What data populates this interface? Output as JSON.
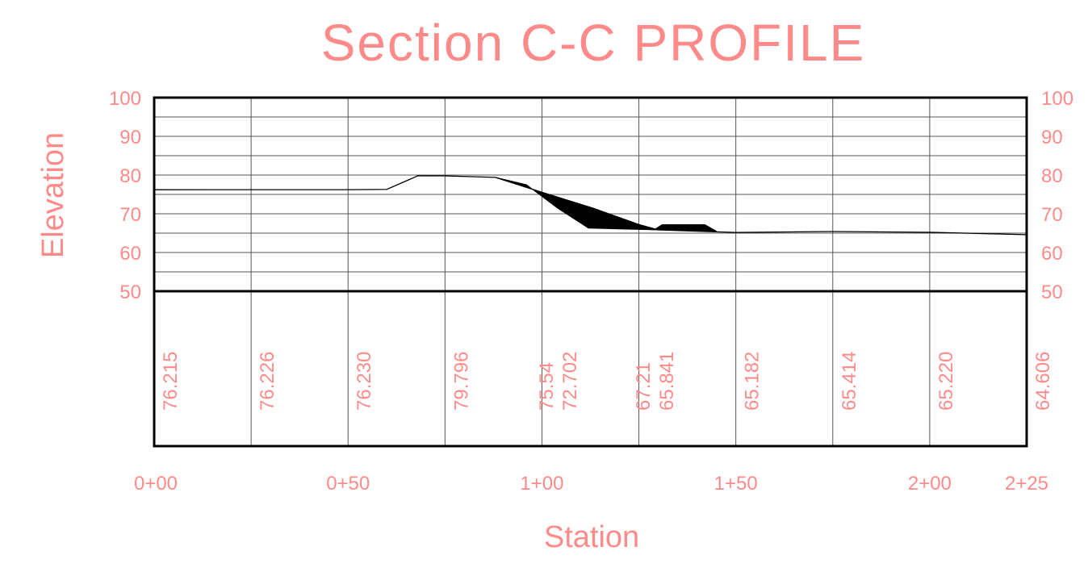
{
  "chart_data": {
    "type": "line",
    "title": "Section C-C PROFILE",
    "xlabel": "Station",
    "ylabel": "Elevation",
    "ylim": [
      50,
      100
    ],
    "xlim": [
      0,
      225
    ],
    "y_ticks": [
      "50",
      "60",
      "70",
      "80",
      "90",
      "100"
    ],
    "y_tick_values": [
      50,
      60,
      70,
      80,
      90,
      100
    ],
    "x_ticks": [
      "0+00",
      "0+50",
      "1+00",
      "1+50",
      "2+00",
      "2+25"
    ],
    "x_tick_values": [
      0,
      50,
      100,
      150,
      200,
      225
    ],
    "grid": true,
    "series": [
      {
        "points": [
          [
            0,
            76.215
          ],
          [
            25,
            76.226
          ],
          [
            50,
            76.23
          ],
          [
            60,
            76.3
          ],
          [
            68,
            79.8
          ],
          [
            75,
            79.796
          ],
          [
            88,
            79.4
          ],
          [
            100,
            75.54
          ],
          [
            113,
            71.5
          ],
          [
            125,
            67.21
          ],
          [
            130,
            65.841
          ],
          [
            150,
            65.182
          ],
          [
            175,
            65.414
          ],
          [
            200,
            65.22
          ],
          [
            225,
            64.606
          ]
        ]
      }
    ],
    "shaded_regions": [
      {
        "points": [
          [
            88,
            79.4
          ],
          [
            100,
            75.54
          ],
          [
            113,
            71.5
          ],
          [
            125,
            67.21
          ],
          [
            130,
            65.841
          ],
          [
            127,
            65.9
          ],
          [
            112,
            66.3
          ],
          [
            104,
            71.5
          ],
          [
            96,
            77.5
          ]
        ]
      },
      {
        "points": [
          [
            129,
            65.9
          ],
          [
            131,
            67.2
          ],
          [
            142,
            67.2
          ],
          [
            145,
            65.5
          ]
        ]
      }
    ],
    "elevation_labels": [
      {
        "station": 0,
        "value": "76.215"
      },
      {
        "station": 25,
        "value": "76.226"
      },
      {
        "station": 50,
        "value": "76.230"
      },
      {
        "station": 75,
        "value": "79.796"
      },
      {
        "station": 97,
        "value": "75.54"
      },
      {
        "station": 103,
        "value": "72.702"
      },
      {
        "station": 122,
        "value": "67.21"
      },
      {
        "station": 128,
        "value": "65.841"
      },
      {
        "station": 150,
        "value": "65.182"
      },
      {
        "station": 175,
        "value": "65.414"
      },
      {
        "station": 200,
        "value": "65.220"
      },
      {
        "station": 225,
        "value": "64.606"
      }
    ]
  },
  "colors": {
    "text": "#ff8a8a",
    "frame": "#000000",
    "grid": "#555555",
    "fill": "#000000"
  }
}
